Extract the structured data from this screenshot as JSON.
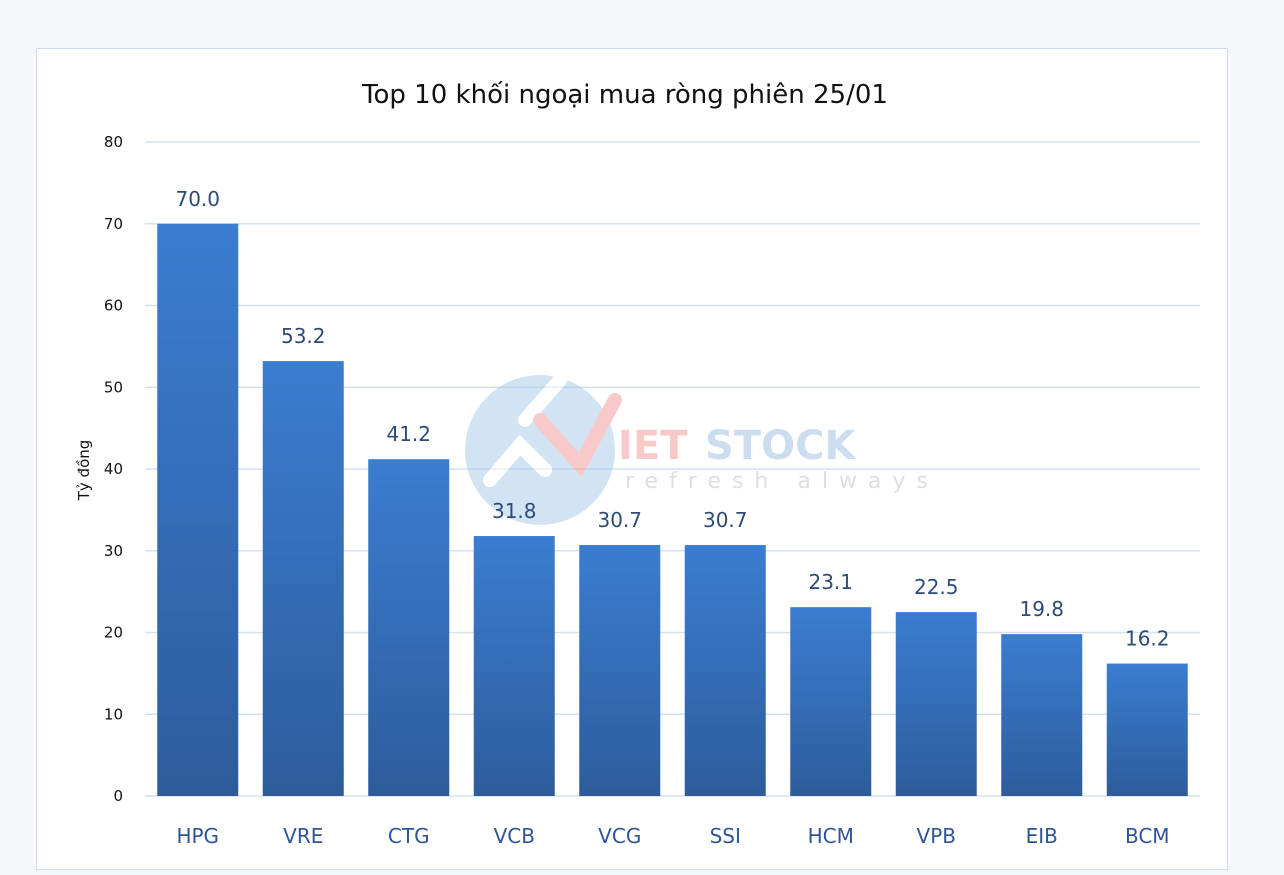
{
  "chart_data": {
    "type": "bar",
    "title": "Top 10 khối ngoại mua ròng phiên 25/01",
    "xlabel": "",
    "ylabel": "Tỷ đồng",
    "ylim": [
      0,
      80
    ],
    "yticks": [
      "0",
      "10",
      "20",
      "30",
      "40",
      "50",
      "60",
      "70",
      "80"
    ],
    "grid": true,
    "categories": [
      "HPG",
      "VRE",
      "CTG",
      "VCB",
      "VCG",
      "SSI",
      "HCM",
      "VPB",
      "EIB",
      "BCM"
    ],
    "values": [
      70.0,
      53.2,
      41.2,
      31.8,
      30.7,
      30.7,
      23.1,
      22.5,
      19.8,
      16.2
    ],
    "data_labels": [
      "70.0",
      "53.2",
      "41.2",
      "31.8",
      "30.7",
      "30.7",
      "23.1",
      "22.5",
      "19.8",
      "16.2"
    ],
    "bar_color_top": "#3b7dd0",
    "bar_color_bottom": "#2d5c9c"
  },
  "watermark": {
    "brand": "VIETSTOCK",
    "tagline": "refresh always"
  }
}
